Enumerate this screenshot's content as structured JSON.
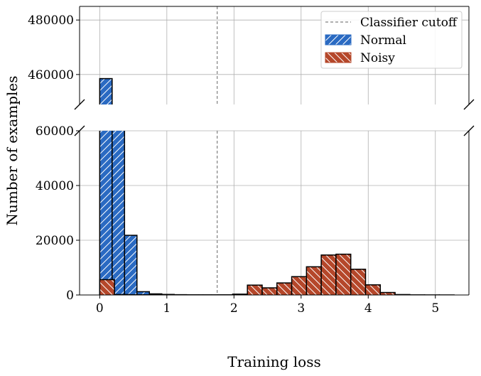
{
  "chart_data": {
    "type": "bar",
    "subtype": "histogram-broken-y-axis",
    "xlabel": "Training loss",
    "ylabel": "Number of examples",
    "xlim": [
      -0.3,
      5.5
    ],
    "x_ticks": [
      0,
      1,
      2,
      3,
      4,
      5
    ],
    "panels": {
      "top": {
        "ylim": [
          449000,
          485000
        ],
        "y_ticks": [
          460000,
          480000
        ]
      },
      "bottom": {
        "ylim": [
          0,
          60000
        ],
        "y_ticks": [
          0,
          20000,
          40000,
          60000
        ]
      }
    },
    "grid": true,
    "cutoff": {
      "name": "Classifier cutoff",
      "x": 1.75,
      "style": "dashed",
      "color": "#7f7f7f"
    },
    "legend": {
      "placement": "top-right",
      "entries": [
        "Classifier cutoff",
        "Normal",
        "Noisy"
      ]
    },
    "series": [
      {
        "name": "Normal",
        "color": "#2a6ac2",
        "hatch": "//",
        "bins": [
          {
            "x0": 0.0,
            "x1": 0.185,
            "value": 458500
          },
          {
            "x0": 0.185,
            "x1": 0.37,
            "value": 60500
          },
          {
            "x0": 0.37,
            "x1": 0.555,
            "value": 21800
          },
          {
            "x0": 0.555,
            "x1": 0.74,
            "value": 1200
          },
          {
            "x0": 0.74,
            "x1": 0.925,
            "value": 400
          },
          {
            "x0": 0.925,
            "x1": 1.11,
            "value": 200
          },
          {
            "x0": 1.11,
            "x1": 1.295,
            "value": 100
          },
          {
            "x0": 1.295,
            "x1": 1.48,
            "value": 50
          },
          {
            "x0": 1.48,
            "x1": 1.665,
            "value": 30
          },
          {
            "x0": 1.665,
            "x1": 1.85,
            "value": 20
          },
          {
            "x0": 1.85,
            "x1": 2.035,
            "value": 20
          },
          {
            "x0": 2.035,
            "x1": 2.22,
            "value": 30
          },
          {
            "x0": 2.22,
            "x1": 2.405,
            "value": 100
          },
          {
            "x0": 2.405,
            "x1": 2.59,
            "value": 1400
          },
          {
            "x0": 2.59,
            "x1": 2.775,
            "value": 100
          },
          {
            "x0": 2.775,
            "x1": 2.96,
            "value": 50
          }
        ]
      },
      {
        "name": "Noisy",
        "color": "#b5472a",
        "hatch": "\\\\",
        "bins": [
          {
            "x0": 0.0,
            "x1": 0.22,
            "value": 5600
          },
          {
            "x0": 0.22,
            "x1": 0.44,
            "value": 150
          },
          {
            "x0": 0.44,
            "x1": 0.66,
            "value": 80
          },
          {
            "x0": 0.66,
            "x1": 0.88,
            "value": 50
          },
          {
            "x0": 0.88,
            "x1": 1.1,
            "value": 40
          },
          {
            "x0": 1.1,
            "x1": 1.32,
            "value": 30
          },
          {
            "x0": 1.32,
            "x1": 1.54,
            "value": 30
          },
          {
            "x0": 1.54,
            "x1": 1.76,
            "value": 30
          },
          {
            "x0": 1.76,
            "x1": 1.98,
            "value": 50
          },
          {
            "x0": 1.98,
            "x1": 2.2,
            "value": 300
          },
          {
            "x0": 2.2,
            "x1": 2.42,
            "value": 3600
          },
          {
            "x0": 2.42,
            "x1": 2.64,
            "value": 2600
          },
          {
            "x0": 2.64,
            "x1": 2.86,
            "value": 4400
          },
          {
            "x0": 2.86,
            "x1": 3.08,
            "value": 6700
          },
          {
            "x0": 3.08,
            "x1": 3.3,
            "value": 10300
          },
          {
            "x0": 3.3,
            "x1": 3.52,
            "value": 14600
          },
          {
            "x0": 3.52,
            "x1": 3.74,
            "value": 14900
          },
          {
            "x0": 3.74,
            "x1": 3.96,
            "value": 9400
          },
          {
            "x0": 3.96,
            "x1": 4.18,
            "value": 3700
          },
          {
            "x0": 4.18,
            "x1": 4.4,
            "value": 900
          },
          {
            "x0": 4.4,
            "x1": 4.62,
            "value": 150
          },
          {
            "x0": 4.62,
            "x1": 4.84,
            "value": 40
          },
          {
            "x0": 4.84,
            "x1": 5.06,
            "value": 20
          },
          {
            "x0": 5.06,
            "x1": 5.28,
            "value": 10
          }
        ]
      }
    ]
  }
}
